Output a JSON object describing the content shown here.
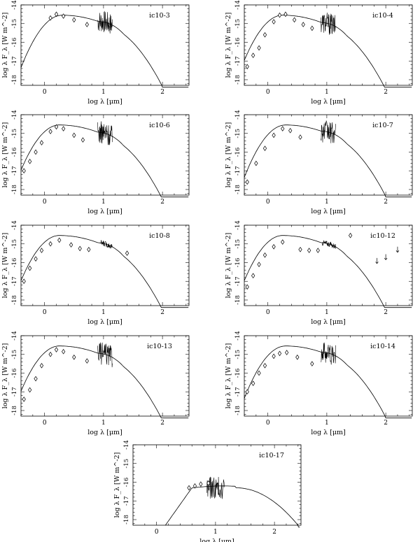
{
  "figure": {
    "description_label": "SED panels"
  },
  "chart_data": [
    {
      "type": "line",
      "title": "ic10-3",
      "xlabel": "log λ [μm]",
      "ylabel": "log λ F_λ [W m^-2]",
      "xlim": [
        -0.4,
        2.45
      ],
      "ylim": [
        -18.3,
        -14
      ],
      "xticks": [
        0,
        1,
        2
      ],
      "yticks": [
        -18,
        -17,
        -16,
        -15,
        -14
      ],
      "photometry": [
        [
          0.1,
          -14.7
        ],
        [
          0.2,
          -14.5
        ],
        [
          0.32,
          -14.6
        ],
        [
          0.5,
          -14.8
        ],
        [
          0.72,
          -15.05
        ]
      ],
      "spectrum_range": [
        0.9,
        1.15
      ],
      "model_peak": 0.3
    },
    {
      "type": "line",
      "title": "ic10-4",
      "xlabel": "log λ [μm]",
      "ylabel": "log λ F_λ [W m^-2]",
      "xlim": [
        -0.4,
        2.45
      ],
      "ylim": [
        -18.3,
        -14
      ],
      "xticks": [
        0,
        1,
        2
      ],
      "yticks": [
        -18,
        -17,
        -16,
        -15,
        -14
      ],
      "photometry": [
        [
          -0.35,
          -17.3
        ],
        [
          -0.25,
          -16.7
        ],
        [
          -0.15,
          -16.3
        ],
        [
          -0.05,
          -15.6
        ],
        [
          0.1,
          -14.9
        ],
        [
          0.2,
          -14.55
        ],
        [
          0.3,
          -14.5
        ],
        [
          0.45,
          -14.8
        ],
        [
          0.6,
          -15.05
        ],
        [
          0.75,
          -15.25
        ]
      ],
      "spectrum_range": [
        0.9,
        1.15
      ],
      "model_peak": 0.25
    },
    {
      "type": "line",
      "title": "ic10-6",
      "xlabel": "log λ [μm]",
      "ylabel": "log λ F_λ [W m^-2]",
      "xlim": [
        -0.4,
        2.45
      ],
      "ylim": [
        -18.3,
        -14
      ],
      "xticks": [
        0,
        1,
        2
      ],
      "yticks": [
        -18,
        -17,
        -16,
        -15,
        -14
      ],
      "photometry": [
        [
          -0.35,
          -17.0
        ],
        [
          -0.25,
          -16.5
        ],
        [
          -0.15,
          -16.0
        ],
        [
          -0.05,
          -15.5
        ],
        [
          0.1,
          -14.9
        ],
        [
          0.2,
          -14.65
        ],
        [
          0.32,
          -14.75
        ],
        [
          0.5,
          -15.1
        ],
        [
          0.65,
          -15.35
        ]
      ],
      "spectrum_range": [
        0.9,
        1.15
      ],
      "model_peak": 0.25
    },
    {
      "type": "line",
      "title": "ic10-7",
      "xlabel": "log λ [μm]",
      "ylabel": "log λ F_λ [W m^-2]",
      "xlim": [
        -0.4,
        2.45
      ],
      "ylim": [
        -18.3,
        -14
      ],
      "xticks": [
        0,
        1,
        2
      ],
      "yticks": [
        -18,
        -17,
        -16,
        -15,
        -14
      ],
      "photometry": [
        [
          -0.35,
          -17.6
        ],
        [
          -0.2,
          -16.6
        ],
        [
          -0.05,
          -15.8
        ],
        [
          0.1,
          -15.1
        ],
        [
          0.25,
          -14.75
        ],
        [
          0.38,
          -14.85
        ],
        [
          0.55,
          -15.2
        ]
      ],
      "spectrum_range": [
        0.9,
        1.15
      ],
      "model_peak": 0.3
    },
    {
      "type": "line",
      "title": "ic10-8",
      "xlabel": "log λ [μm]",
      "ylabel": "log λ F_λ [W m^-2]",
      "xlim": [
        -0.4,
        2.45
      ],
      "ylim": [
        -18.3,
        -14
      ],
      "xticks": [
        0,
        1,
        2
      ],
      "yticks": [
        -18,
        -17,
        -16,
        -15,
        -14
      ],
      "photometry": [
        [
          -0.35,
          -17.0
        ],
        [
          -0.25,
          -16.3
        ],
        [
          -0.15,
          -15.8
        ],
        [
          -0.05,
          -15.35
        ],
        [
          0.1,
          -15.0
        ],
        [
          0.25,
          -14.8
        ],
        [
          0.45,
          -15.05
        ],
        [
          0.6,
          -15.25
        ],
        [
          0.75,
          -15.3
        ],
        [
          1.4,
          -15.5
        ]
      ],
      "spectrum_range": [
        0.95,
        1.15
      ],
      "model_peak": 0.25
    },
    {
      "type": "line",
      "title": "ic10-12",
      "xlabel": "log λ [μm]",
      "ylabel": "log λ F_λ [W m^-2]",
      "xlim": [
        -0.4,
        2.45
      ],
      "ylim": [
        -18.3,
        -14
      ],
      "xticks": [
        0,
        1,
        2
      ],
      "yticks": [
        -18,
        -17,
        -16,
        -15,
        -14
      ],
      "photometry": [
        [
          -0.35,
          -17.3
        ],
        [
          -0.25,
          -16.7
        ],
        [
          -0.15,
          -16.1
        ],
        [
          -0.05,
          -15.6
        ],
        [
          0.1,
          -15.15
        ],
        [
          0.25,
          -14.9
        ],
        [
          0.55,
          -15.3
        ],
        [
          0.7,
          -15.35
        ],
        [
          0.85,
          -15.35
        ],
        [
          1.4,
          -14.55
        ]
      ],
      "upper_limits": [
        [
          1.85,
          -15.9
        ],
        [
          2.0,
          -15.7
        ],
        [
          2.2,
          -15.3
        ]
      ],
      "spectrum_range": [
        0.92,
        1.15
      ],
      "model_peak": 0.25
    },
    {
      "type": "line",
      "title": "ic10-13",
      "xlabel": "log λ [μm]",
      "ylabel": "log λ F_λ [W m^-2]",
      "xlim": [
        -0.4,
        2.45
      ],
      "ylim": [
        -18.3,
        -14
      ],
      "xticks": [
        0,
        1,
        2
      ],
      "yticks": [
        -18,
        -17,
        -16,
        -15,
        -14
      ],
      "photometry": [
        [
          -0.35,
          -17.4
        ],
        [
          -0.25,
          -16.9
        ],
        [
          -0.15,
          -16.3
        ],
        [
          -0.05,
          -15.6
        ],
        [
          0.1,
          -15.0
        ],
        [
          0.2,
          -14.75
        ],
        [
          0.32,
          -14.85
        ],
        [
          0.5,
          -15.15
        ],
        [
          0.72,
          -15.35
        ]
      ],
      "spectrum_range": [
        0.9,
        1.15
      ],
      "model_peak": 0.25
    },
    {
      "type": "line",
      "title": "ic10-14",
      "xlabel": "log λ [μm]",
      "ylabel": "log λ F_λ [W m^-2]",
      "xlim": [
        -0.4,
        2.45
      ],
      "ylim": [
        -18.3,
        -14
      ],
      "xticks": [
        0,
        1,
        2
      ],
      "yticks": [
        -18,
        -17,
        -16,
        -15,
        -14
      ],
      "photometry": [
        [
          -0.35,
          -17.0
        ],
        [
          -0.25,
          -16.55
        ],
        [
          -0.15,
          -16.0
        ],
        [
          -0.05,
          -15.6
        ],
        [
          0.1,
          -15.1
        ],
        [
          0.2,
          -14.95
        ],
        [
          0.32,
          -14.9
        ],
        [
          0.5,
          -15.15
        ],
        [
          0.75,
          -15.5
        ]
      ],
      "spectrum_range": [
        0.9,
        1.15
      ],
      "model_peak": 0.3
    },
    {
      "type": "line",
      "title": "ic10-17",
      "xlabel": "log λ [μm]",
      "ylabel": "log λ F_λ [W m^-2]",
      "xlim": [
        -0.4,
        2.45
      ],
      "ylim": [
        -18.3,
        -14
      ],
      "xticks": [
        0,
        1,
        2
      ],
      "yticks": [
        -18,
        -17,
        -16,
        -15,
        -14
      ],
      "photometry": [
        [
          0.55,
          -16.3
        ],
        [
          0.65,
          -16.2
        ],
        [
          0.75,
          -16.1
        ],
        [
          0.88,
          -16.05
        ]
      ],
      "spectrum_range": [
        0.85,
        1.15
      ],
      "model_peak": 1.2,
      "model_start": 0.15
    }
  ]
}
